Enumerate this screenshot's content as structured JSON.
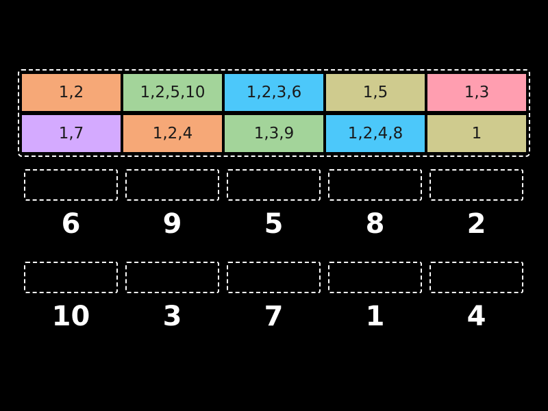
{
  "tiles": [
    {
      "label": "1,2",
      "color": "#f6a877"
    },
    {
      "label": "1,2,5,10",
      "color": "#a3d49a"
    },
    {
      "label": "1,2,3,6",
      "color": "#4cc8fa"
    },
    {
      "label": "1,5",
      "color": "#cfcb8e"
    },
    {
      "label": "1,3",
      "color": "#ff9eb0"
    },
    {
      "label": "1,7",
      "color": "#d4aaff"
    },
    {
      "label": "1,2,4",
      "color": "#f6a877"
    },
    {
      "label": "1,3,9",
      "color": "#a3d49a"
    },
    {
      "label": "1,2,4,8",
      "color": "#4cc8fa"
    },
    {
      "label": "1",
      "color": "#cfcb8e"
    }
  ],
  "targets": [
    {
      "label": "6"
    },
    {
      "label": "9"
    },
    {
      "label": "5"
    },
    {
      "label": "8"
    },
    {
      "label": "2"
    },
    {
      "label": "10"
    },
    {
      "label": "3"
    },
    {
      "label": "7"
    },
    {
      "label": "1"
    },
    {
      "label": "4"
    }
  ]
}
